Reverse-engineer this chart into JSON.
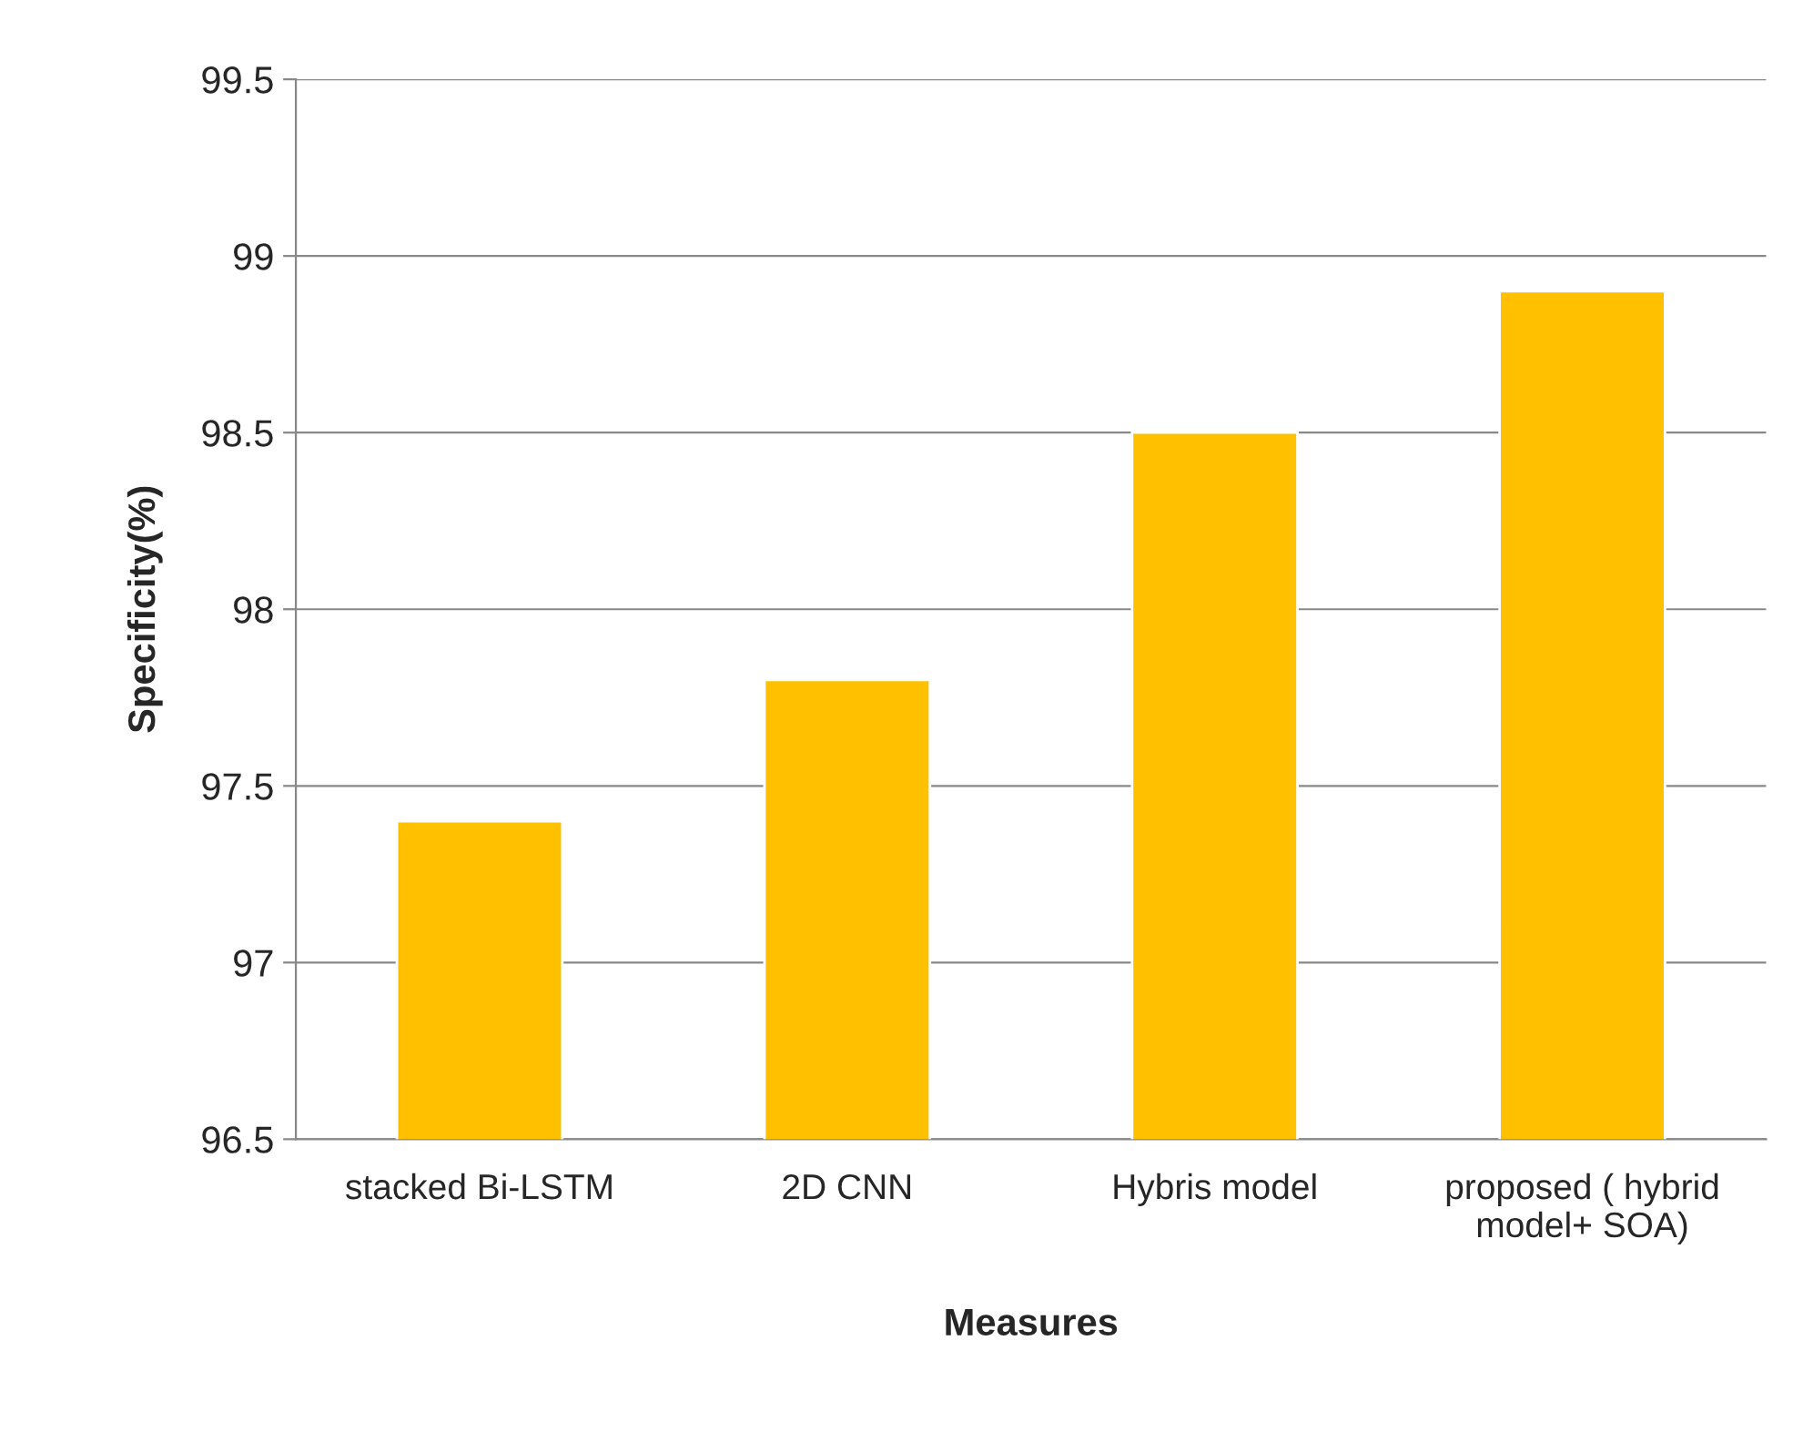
{
  "chart_data": {
    "type": "bar",
    "xlabel": "Measures",
    "ylabel": "Specificity(%)",
    "categories": [
      "stacked Bi-LSTM",
      "2D CNN",
      "Hybris model",
      "proposed ( hybrid model+ SOA)"
    ],
    "values": [
      97.4,
      97.8,
      98.5,
      98.9
    ],
    "color": "#ffc000",
    "ylim": [
      96.5,
      99.5
    ],
    "yticks": [
      96.5,
      97,
      97.5,
      98,
      98.5,
      99,
      99.5
    ],
    "grid": "y",
    "legend": false
  }
}
